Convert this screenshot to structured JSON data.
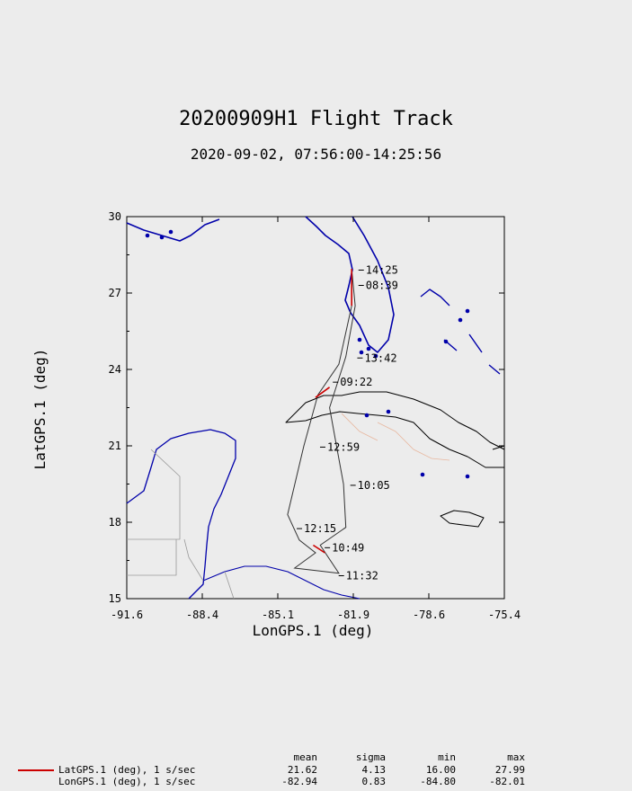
{
  "chart_data": {
    "type": "line",
    "title": "20200909H1 Flight Track",
    "subtitle": "2020-09-02, 07:56:00-14:25:56",
    "xlabel": "LonGPS.1 (deg)",
    "ylabel": "LatGPS.1 (deg)",
    "xlim": [
      -91.6,
      -75.4
    ],
    "ylim": [
      15,
      30
    ],
    "x_ticks": [
      "-91.6",
      "-88.4",
      "-85.1",
      "-81.9",
      "-78.6",
      "-75.4"
    ],
    "y_ticks": [
      "15",
      "18",
      "21",
      "24",
      "27",
      "30"
    ],
    "grid": false,
    "track": [
      {
        "lon": -81.95,
        "lat": 27.95
      },
      {
        "lon": -81.95,
        "lat": 26.5
      },
      {
        "lon": -82.5,
        "lat": 24.2
      },
      {
        "lon": -83.4,
        "lat": 23.0
      },
      {
        "lon": -84.0,
        "lat": 21.0
      },
      {
        "lon": -84.7,
        "lat": 18.3
      },
      {
        "lon": -84.2,
        "lat": 17.3
      },
      {
        "lon": -83.5,
        "lat": 16.8
      },
      {
        "lon": -84.4,
        "lat": 16.2
      },
      {
        "lon": -82.5,
        "lat": 16.0
      },
      {
        "lon": -82.5,
        "lat": 16.0
      },
      {
        "lon": -83.3,
        "lat": 17.1
      },
      {
        "lon": -82.2,
        "lat": 17.8
      },
      {
        "lon": -82.3,
        "lat": 19.5
      },
      {
        "lon": -82.6,
        "lat": 21.0
      },
      {
        "lon": -82.9,
        "lat": 22.5
      },
      {
        "lon": -82.2,
        "lat": 24.5
      },
      {
        "lon": -81.8,
        "lat": 26.5
      },
      {
        "lon": -81.95,
        "lat": 27.95
      }
    ],
    "time_labels": [
      {
        "text": "14:25",
        "lon": -81.35,
        "lat": 27.9
      },
      {
        "text": "08:39",
        "lon": -81.35,
        "lat": 27.3
      },
      {
        "text": "13:42",
        "lon": -81.4,
        "lat": 24.45
      },
      {
        "text": "09:22",
        "lon": -82.45,
        "lat": 23.5
      },
      {
        "text": "12:59",
        "lon": -83.0,
        "lat": 20.95
      },
      {
        "text": "10:05",
        "lon": -81.7,
        "lat": 19.45
      },
      {
        "text": "12:15",
        "lon": -84.0,
        "lat": 17.75
      },
      {
        "text": "10:49",
        "lon": -82.8,
        "lat": 17.0
      },
      {
        "text": "11:32",
        "lon": -82.2,
        "lat": 15.9
      }
    ],
    "stats_headers": [
      "mean",
      "sigma",
      "min",
      "max"
    ],
    "series": [
      {
        "name": "LatGPS.1 (deg), 1 s/sec",
        "color": "#cc0000",
        "mean": "21.62",
        "sigma": "4.13",
        "min": "16.00",
        "max": "27.99"
      },
      {
        "name": "LonGPS.1 (deg), 1 s/sec",
        "color": "",
        "mean": "-82.94",
        "sigma": "0.83",
        "min": "-84.80",
        "max": "-82.01"
      }
    ]
  },
  "colors": {
    "background": "#ececec",
    "coast": "#0000aa",
    "border": "#999999",
    "track": "#333333",
    "highlight": "#cc0000"
  }
}
